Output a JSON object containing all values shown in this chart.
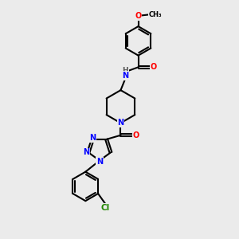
{
  "background_color": "#ebebeb",
  "atom_colors": {
    "C": "#000000",
    "N": "#0000ff",
    "O": "#ff0000",
    "Cl": "#228800",
    "H": "#555555"
  },
  "bond_color": "#000000",
  "bond_width": 1.5,
  "figsize": [
    3.0,
    3.0
  ],
  "dpi": 100,
  "xlim": [
    0,
    10
  ],
  "ylim": [
    0,
    10
  ]
}
